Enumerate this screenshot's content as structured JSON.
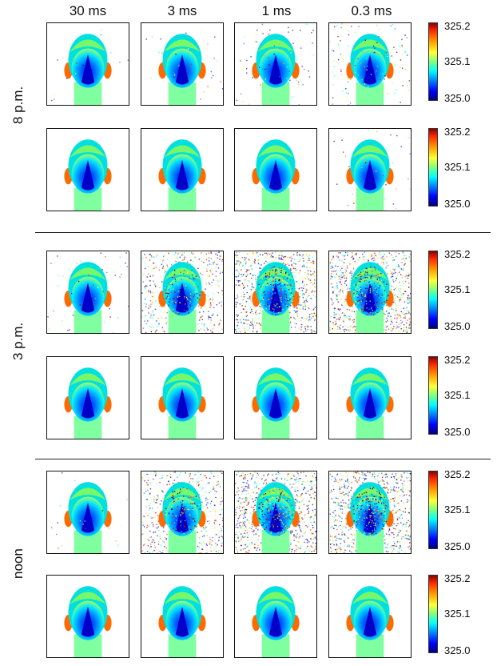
{
  "column_headers": [
    "30 ms",
    "3 ms",
    "1 ms",
    "0.3 ms"
  ],
  "row_groups": [
    {
      "label": "8 p.m.",
      "noise_row1": [
        0.02,
        0.05,
        0.08,
        0.15
      ],
      "noise_row2": [
        0.0,
        0.0,
        0.0,
        0.05
      ]
    },
    {
      "label": "3 p.m.",
      "noise_row1": [
        0.05,
        0.55,
        0.9,
        0.95
      ],
      "noise_row2": [
        0.0,
        0.0,
        0.0,
        0.0
      ]
    },
    {
      "label": "noon",
      "noise_row1": [
        0.03,
        0.6,
        0.9,
        0.95
      ],
      "noise_row2": [
        0.0,
        0.0,
        0.0,
        0.0
      ]
    }
  ],
  "colorbar": {
    "max_label": "325.2",
    "mid_label": "325.1",
    "min_label": "325.0"
  },
  "colormap": [
    "#00007f",
    "#0000ff",
    "#0080ff",
    "#00ffff",
    "#80ff80",
    "#ffff33",
    "#ffa500",
    "#ff2a00",
    "#8b0000"
  ]
}
